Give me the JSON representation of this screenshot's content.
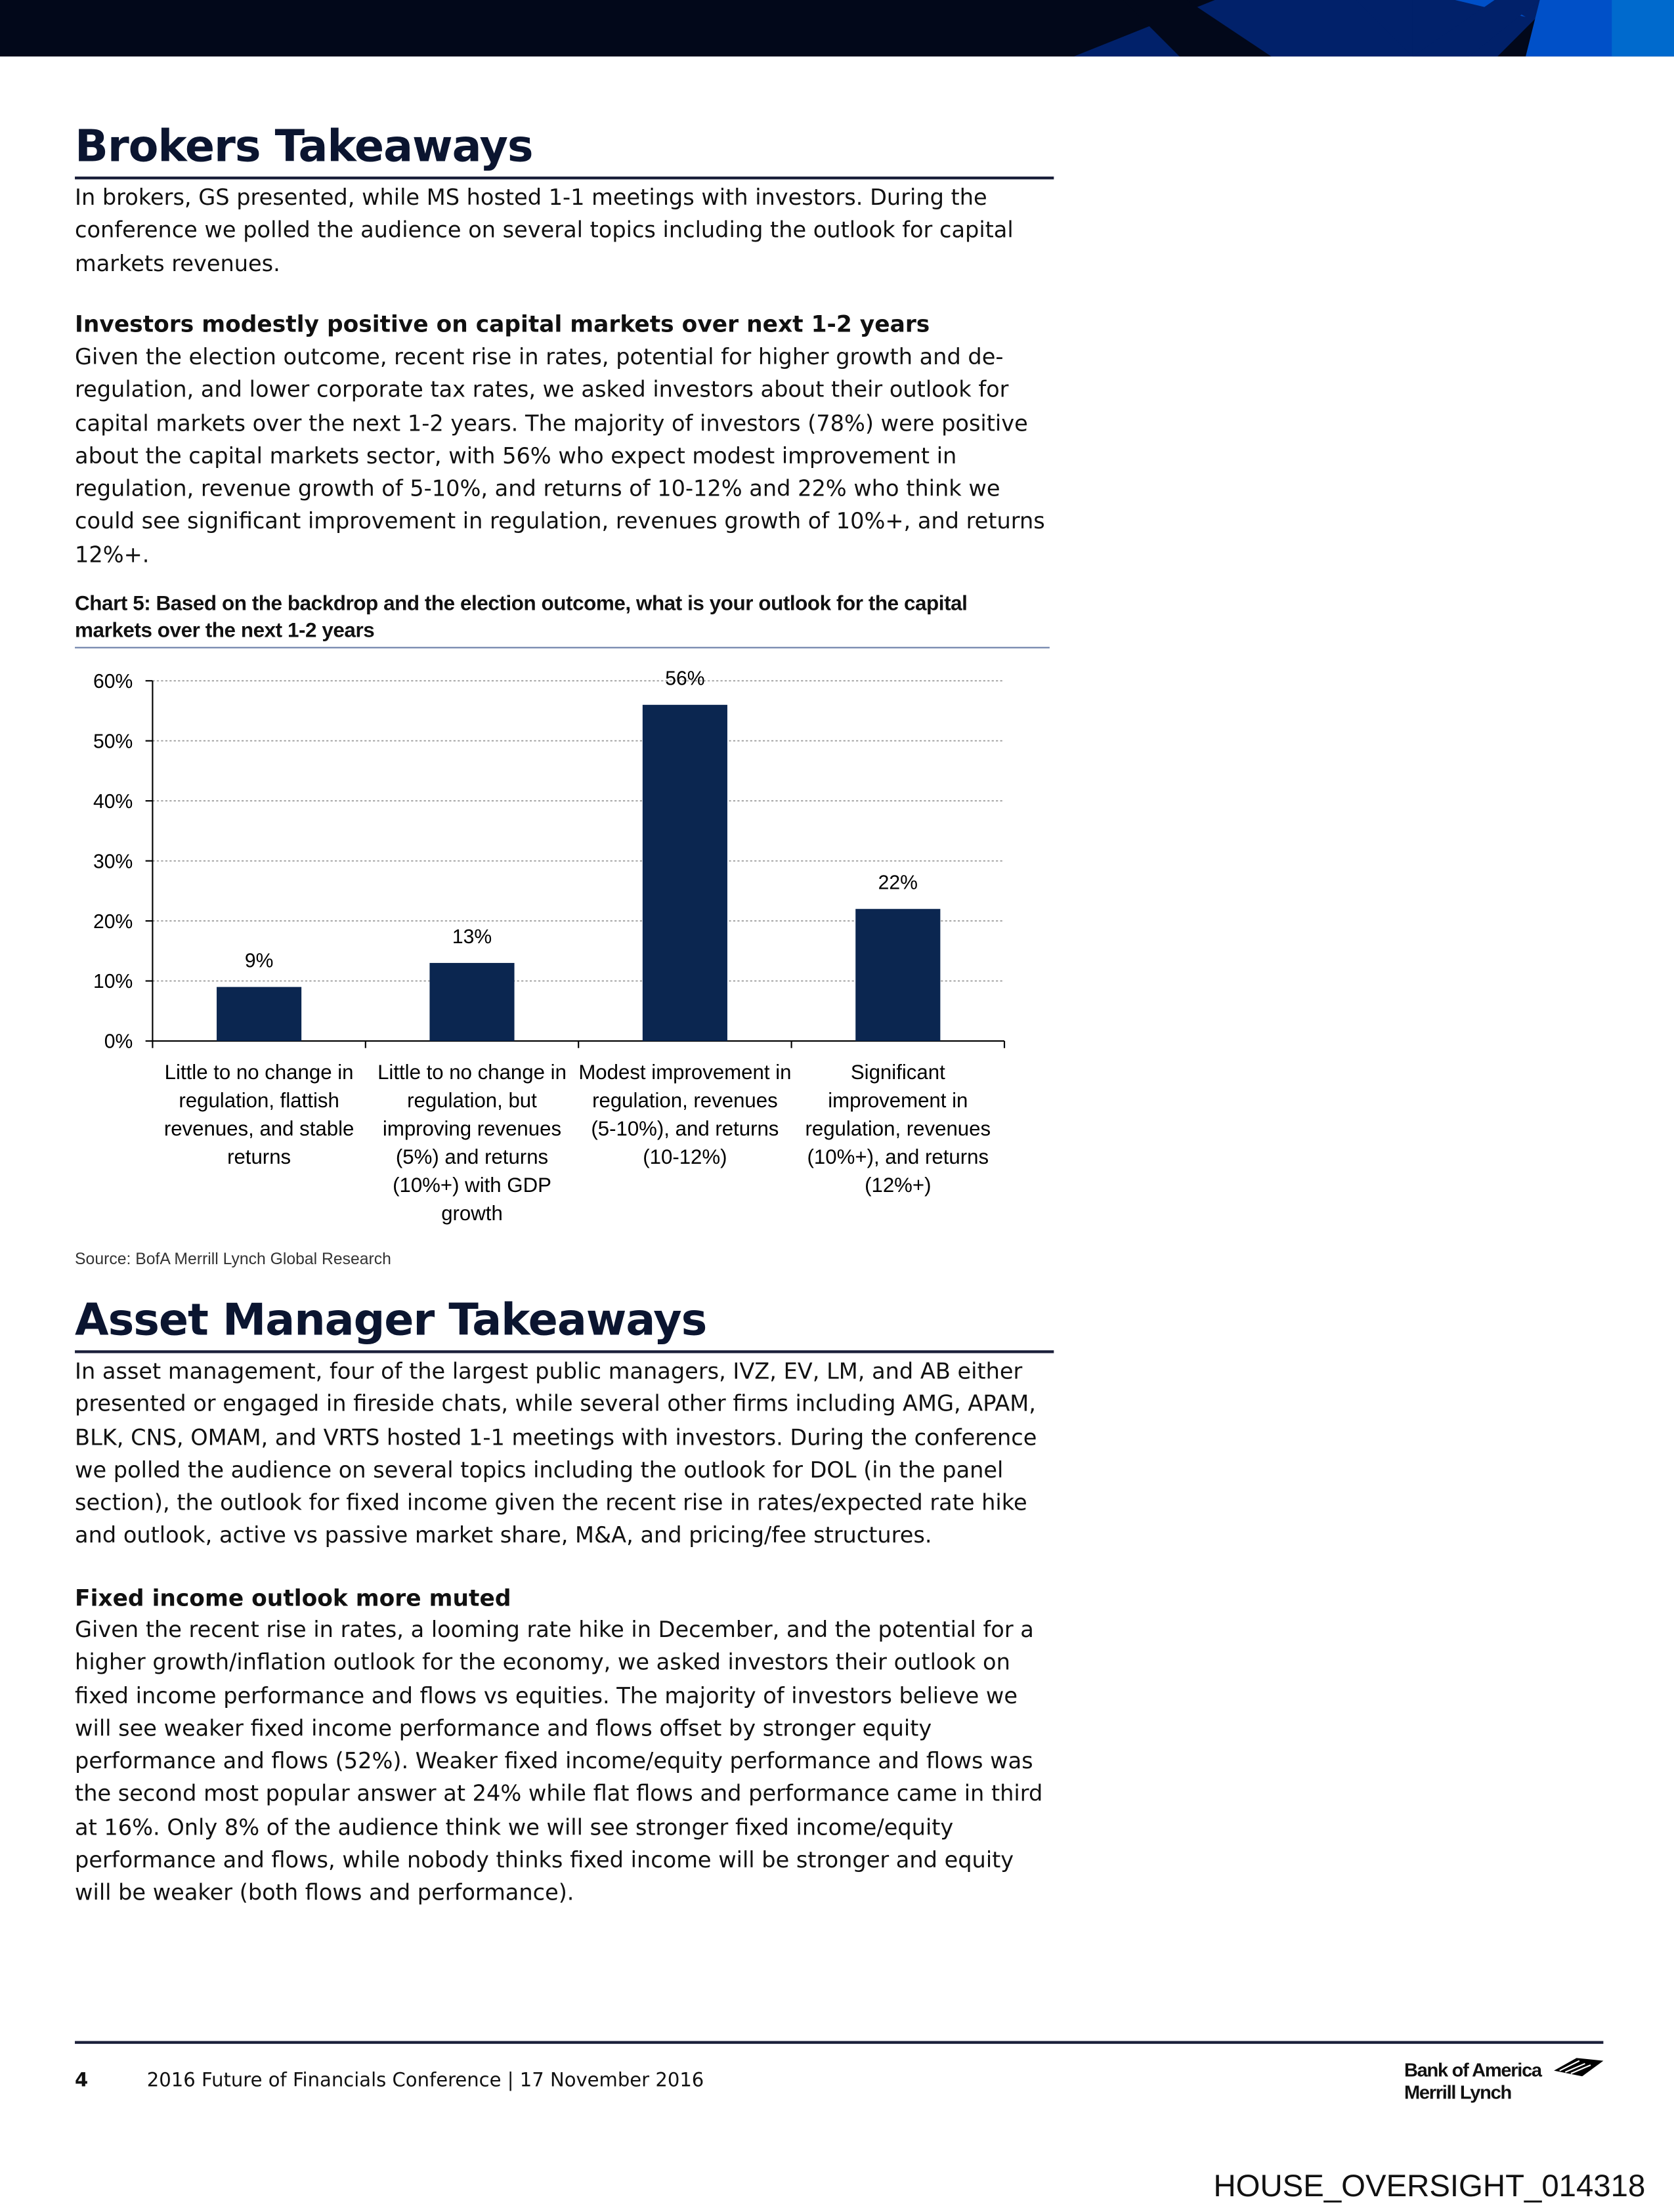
{
  "colors": {
    "header_dark": "#02081a",
    "header_navy": "#01216a",
    "header_blue": "#0050c8",
    "bar": "#0b2650",
    "heading": "#0b1530"
  },
  "brokers": {
    "title": "Brokers Takeaways",
    "intro": "In brokers, GS presented, while MS hosted 1-1 meetings with investors. During the conference we polled the audience on several topics including the outlook for capital markets revenues.",
    "subheading": "Investors modestly positive on capital markets over next 1-2 years",
    "body": "Given the election outcome, recent rise in rates, potential for higher growth and de-regulation, and lower corporate tax rates, we asked investors about their outlook for capital markets over the next 1-2 years. The majority of investors (78%) were positive about the capital markets sector, with 56% who expect modest improvement in regulation, revenue growth of 5-10%, and returns of 10-12% and 22% who think we could see significant improvement in regulation, revenues growth of 10%+, and returns 12%+."
  },
  "chart_data": {
    "type": "bar",
    "title": "Chart 5: Based on the backdrop and the election outcome, what is your outlook for the capital markets over the next 1-2 years",
    "categories": [
      [
        "Little to no change in",
        "regulation, flattish",
        "revenues, and stable",
        "returns"
      ],
      [
        "Little to no change in",
        "regulation, but",
        "improving revenues",
        "(5%) and returns",
        "(10%+) with GDP",
        "growth"
      ],
      [
        "Modest improvement in",
        "regulation, revenues",
        "(5-10%), and returns",
        "(10-12%)"
      ],
      [
        "Significant",
        "improvement in",
        "regulation, revenues",
        "(10%+), and returns",
        "(12%+)"
      ]
    ],
    "values": [
      9,
      13,
      56,
      22
    ],
    "data_labels": [
      "9%",
      "13%",
      "56%",
      "22%"
    ],
    "yticks": [
      "0%",
      "10%",
      "20%",
      "30%",
      "40%",
      "50%",
      "60%"
    ],
    "ylim": [
      0,
      60
    ],
    "grid": true,
    "source": "Source: BofA Merrill Lynch Global Research"
  },
  "asset": {
    "title": "Asset Manager Takeaways",
    "intro": "In asset management, four of the largest public managers, IVZ, EV, LM, and AB either presented or engaged in fireside chats, while several other firms including AMG, APAM, BLK, CNS, OMAM, and VRTS hosted 1-1 meetings with investors. During the conference we polled the audience on several topics including the outlook for DOL (in the panel section), the outlook for fixed income given the recent rise in rates/expected rate hike and outlook, active vs passive market share, M&A, and pricing/fee structures.",
    "subheading": "Fixed income outlook more muted",
    "body": "Given the recent rise in rates, a looming rate hike in December, and the potential for a higher growth/inflation outlook for the economy, we asked investors their outlook on fixed income performance and flows vs equities. The majority of investors believe we will see weaker fixed income performance and flows offset by stronger equity performance and flows (52%). Weaker fixed income/equity performance and flows was the second most popular answer at 24% while flat flows and performance came in third at 16%. Only 8% of the audience think we will see stronger fixed income/equity performance and flows, while nobody thinks fixed income will be stronger and equity will be weaker (both flows and performance)."
  },
  "footer": {
    "page": "4",
    "text": "2016 Future of Financials Conference | 17 November 2016",
    "logo_line1": "Bank of America",
    "logo_line2": "Merrill Lynch",
    "doc_id": "HOUSE_OVERSIGHT_014318"
  }
}
